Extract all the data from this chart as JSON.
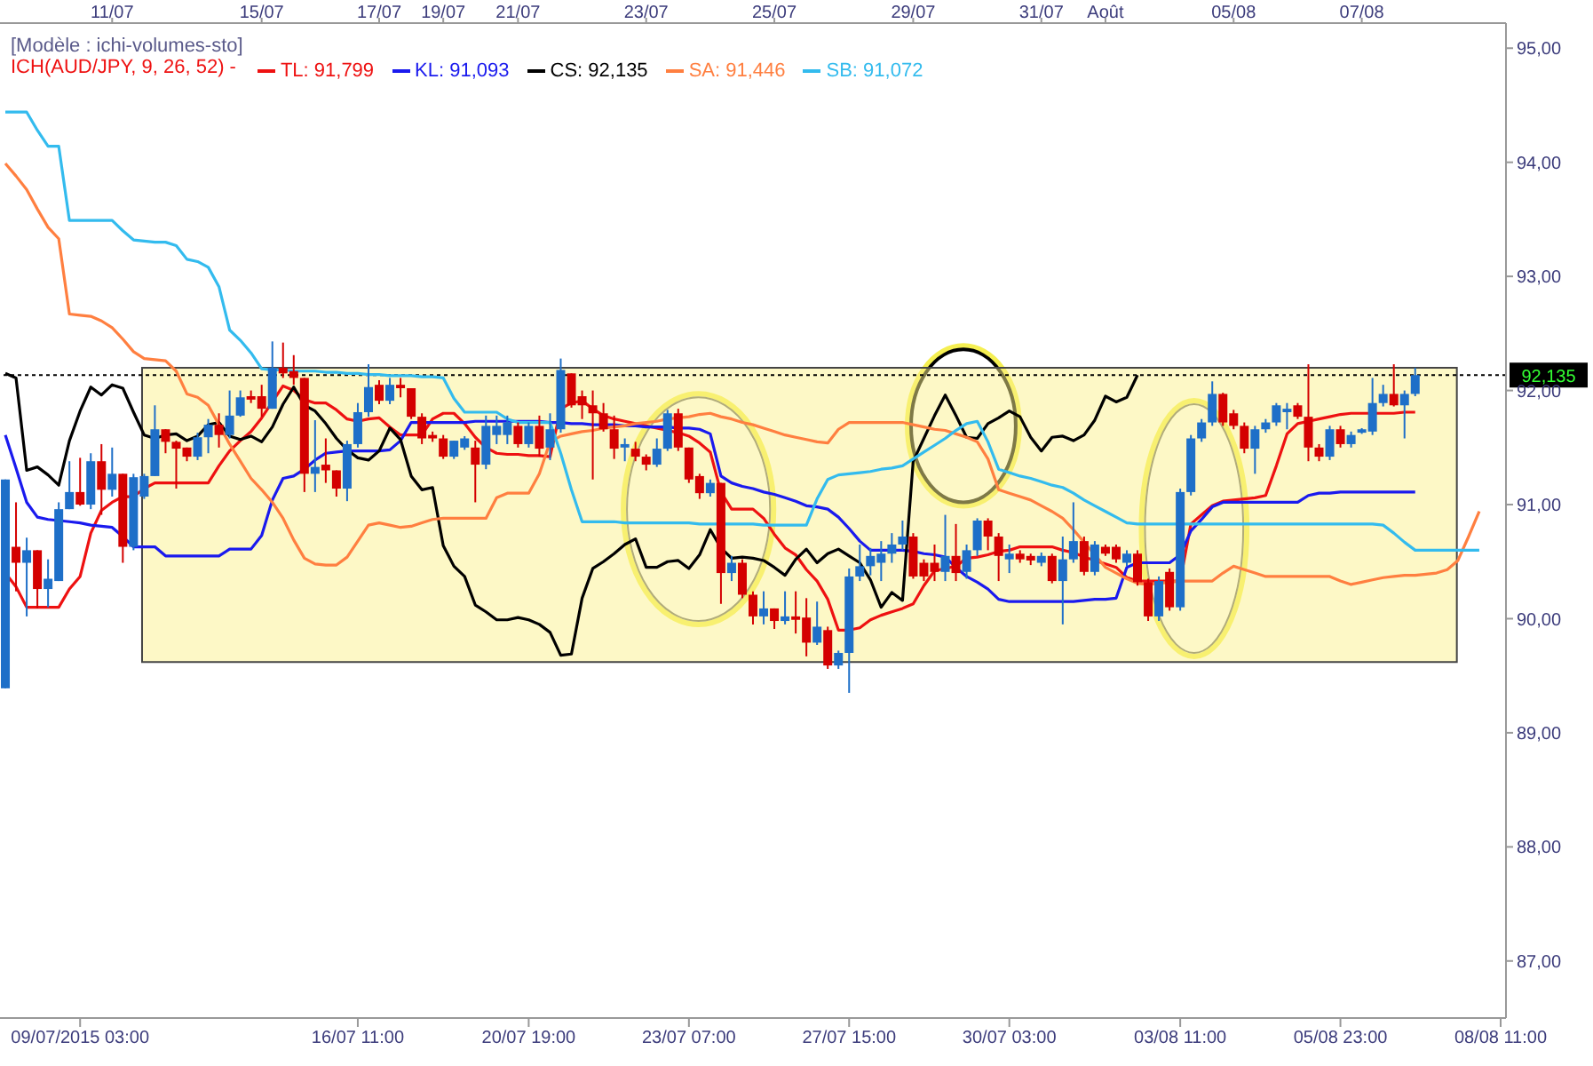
{
  "chart_data": {
    "type": "candlestick",
    "title": "[Modèle : ichi-volumes-sto]",
    "legend_title": "ICH(AUD/JPY, 9, 26, 52) -",
    "legend": "top left",
    "grid": false,
    "marker": "none",
    "line_style": "solid",
    "ylim": [
      86.5,
      95.22
    ],
    "categories": [
      null,
      null,
      null,
      null,
      null,
      null,
      null,
      "09/07/2015 03:00",
      null,
      null,
      null,
      null,
      null,
      null,
      null,
      null,
      null,
      null,
      null,
      null,
      null,
      null,
      null,
      null,
      null,
      null,
      null,
      null,
      null,
      null,
      null,
      null,
      null,
      "16/07 11:00",
      null,
      null,
      null,
      null,
      null,
      null,
      null,
      null,
      null,
      null,
      null,
      null,
      null,
      null,
      null,
      "20/07 19:00",
      null,
      null,
      null,
      null,
      null,
      null,
      null,
      null,
      null,
      null,
      null,
      null,
      null,
      null,
      "23/07 07:00",
      null,
      null,
      null,
      null,
      null,
      null,
      null,
      null,
      null,
      null,
      null,
      null,
      null,
      null,
      "27/07 15:00",
      null,
      null,
      null,
      null,
      null,
      null,
      null,
      null,
      null,
      null,
      null,
      null,
      null,
      null,
      "30/07 03:00",
      null,
      null,
      null,
      null,
      null,
      null,
      null,
      null,
      null,
      null,
      null,
      null,
      null,
      null,
      null,
      "03/08 11:00",
      null,
      null,
      null,
      null,
      null,
      null,
      null,
      null,
      null,
      null,
      null,
      null,
      null,
      null,
      "05/08 23:00",
      null,
      null,
      null,
      null,
      null,
      null,
      null,
      null,
      null,
      null,
      null,
      null,
      null,
      null,
      "08/08 11:00"
    ],
    "annotations": [
      "11/07",
      "15/07",
      "17/07",
      "19/07",
      "21/07",
      "23/07",
      "25/07",
      "29/07",
      "31/07",
      "Août",
      "05/08",
      "07/08"
    ],
    "yticks": [
      {
        "value": 87,
        "label": "87,00"
      },
      {
        "value": 88,
        "label": "88,00"
      },
      {
        "value": 89,
        "label": "89,00"
      },
      {
        "value": 90,
        "label": "90,00"
      },
      {
        "value": 91,
        "label": "91,00"
      },
      {
        "value": 92,
        "label": "92,00"
      },
      {
        "value": 93,
        "label": "93,00"
      },
      {
        "value": 94,
        "label": "94,00"
      },
      {
        "value": 95,
        "label": "95,00"
      }
    ],
    "ref_lines": [
      {
        "axis": "y",
        "value": 92.135,
        "label": "92,135",
        "color": "#000000",
        "line_style": "dotted"
      }
    ],
    "bands": [
      {
        "axis": "y",
        "from": 89.62,
        "to": 92.2,
        "color": "#fdf8c6"
      }
    ],
    "ohlc": [
      [
        89.39,
        91.22,
        89.39,
        91.22
      ],
      [
        90.63,
        91.02,
        90.24,
        90.49
      ],
      [
        90.49,
        90.71,
        90.02,
        90.6
      ],
      [
        90.6,
        90.6,
        90.09,
        90.26
      ],
      [
        90.26,
        90.52,
        90.1,
        90.35
      ],
      [
        90.33,
        91.02,
        90.33,
        90.96
      ],
      [
        90.96,
        91.38,
        90.96,
        91.11
      ],
      [
        91.11,
        91.41,
        90.99,
        91.0
      ],
      [
        91.0,
        91.45,
        90.96,
        91.38
      ],
      [
        91.38,
        91.53,
        90.91,
        91.13
      ],
      [
        91.13,
        91.5,
        91.07,
        91.27
      ],
      [
        91.27,
        91.27,
        90.49,
        90.63
      ],
      [
        90.63,
        91.27,
        90.6,
        91.24
      ],
      [
        91.07,
        91.27,
        91.05,
        91.25
      ],
      [
        91.25,
        91.87,
        91.25,
        91.66
      ],
      [
        91.66,
        91.66,
        91.45,
        91.55
      ],
      [
        91.55,
        91.56,
        91.14,
        91.49
      ],
      [
        91.5,
        91.5,
        91.38,
        91.42
      ],
      [
        91.42,
        91.63,
        91.39,
        91.59
      ],
      [
        91.59,
        91.75,
        91.45,
        91.7
      ],
      [
        91.7,
        91.8,
        91.5,
        91.61
      ],
      [
        91.61,
        92.0,
        91.58,
        91.78
      ],
      [
        91.78,
        92.0,
        91.77,
        91.94
      ],
      [
        91.95,
        92.0,
        91.89,
        91.92
      ],
      [
        91.95,
        92.05,
        91.77,
        91.84
      ],
      [
        91.84,
        92.43,
        91.84,
        92.2
      ],
      [
        92.2,
        92.42,
        92.11,
        92.15
      ],
      [
        92.17,
        92.31,
        92.05,
        92.11
      ],
      [
        92.11,
        92.11,
        91.11,
        91.27
      ],
      [
        91.27,
        91.74,
        91.11,
        91.33
      ],
      [
        91.35,
        91.58,
        91.19,
        91.3
      ],
      [
        91.3,
        91.3,
        91.07,
        91.14
      ],
      [
        91.14,
        91.56,
        91.03,
        91.53
      ],
      [
        91.53,
        91.89,
        91.5,
        91.81
      ],
      [
        91.81,
        92.23,
        91.77,
        92.03
      ],
      [
        92.05,
        92.09,
        91.88,
        91.91
      ],
      [
        91.91,
        92.11,
        91.88,
        92.05
      ],
      [
        92.05,
        92.11,
        91.94,
        92.02
      ],
      [
        92.02,
        92.02,
        91.75,
        91.77
      ],
      [
        91.77,
        91.8,
        91.53,
        91.58
      ],
      [
        91.61,
        91.64,
        91.55,
        91.58
      ],
      [
        91.58,
        91.61,
        91.4,
        91.42
      ],
      [
        91.42,
        91.56,
        91.4,
        91.56
      ],
      [
        91.5,
        91.6,
        91.48,
        91.58
      ],
      [
        91.5,
        91.56,
        91.02,
        91.35
      ],
      [
        91.35,
        91.78,
        91.31,
        91.69
      ],
      [
        91.61,
        91.78,
        91.53,
        91.69
      ],
      [
        91.61,
        91.78,
        91.53,
        91.72
      ],
      [
        91.69,
        91.72,
        91.5,
        91.53
      ],
      [
        91.53,
        91.72,
        91.5,
        91.69
      ],
      [
        91.69,
        91.78,
        91.42,
        91.49
      ],
      [
        91.5,
        91.8,
        91.39,
        91.66
      ],
      [
        91.66,
        92.28,
        91.63,
        92.18
      ],
      [
        92.15,
        92.15,
        91.85,
        91.87
      ],
      [
        91.95,
        92.0,
        91.75,
        91.87
      ],
      [
        91.87,
        92.0,
        91.22,
        91.8
      ],
      [
        91.8,
        91.89,
        91.64,
        91.66
      ],
      [
        91.66,
        91.78,
        91.4,
        91.49
      ],
      [
        91.5,
        91.58,
        91.38,
        91.53
      ],
      [
        91.49,
        91.55,
        91.38,
        91.42
      ],
      [
        91.42,
        91.44,
        91.3,
        91.35
      ],
      [
        91.35,
        91.58,
        91.33,
        91.49
      ],
      [
        91.49,
        91.83,
        91.47,
        91.8
      ],
      [
        91.8,
        91.84,
        91.47,
        91.5
      ],
      [
        91.5,
        91.5,
        91.19,
        91.22
      ],
      [
        91.25,
        91.27,
        91.05,
        91.1
      ],
      [
        91.1,
        91.22,
        91.07,
        91.19
      ],
      [
        91.19,
        91.19,
        90.13,
        90.4
      ],
      [
        90.4,
        90.55,
        90.33,
        90.49
      ],
      [
        90.49,
        90.52,
        90.18,
        90.21
      ],
      [
        90.21,
        90.24,
        89.95,
        90.02
      ],
      [
        90.02,
        90.24,
        89.95,
        90.09
      ],
      [
        90.09,
        90.09,
        89.91,
        89.98
      ],
      [
        89.98,
        90.24,
        89.95,
        90.02
      ],
      [
        90.02,
        90.24,
        89.87,
        89.99
      ],
      [
        90.01,
        90.18,
        89.67,
        89.79
      ],
      [
        89.79,
        90.15,
        89.77,
        89.93
      ],
      [
        89.9,
        89.93,
        89.56,
        89.59
      ],
      [
        89.59,
        89.72,
        89.56,
        89.7
      ],
      [
        89.7,
        90.44,
        89.35,
        90.37
      ],
      [
        90.37,
        90.65,
        90.33,
        90.46
      ],
      [
        90.46,
        90.62,
        90.38,
        90.55
      ],
      [
        90.49,
        90.68,
        90.33,
        90.57
      ],
      [
        90.57,
        90.75,
        90.49,
        90.65
      ],
      [
        90.65,
        90.86,
        90.6,
        90.72
      ],
      [
        90.72,
        90.75,
        90.35,
        90.37
      ],
      [
        90.49,
        90.52,
        90.33,
        90.37
      ],
      [
        90.49,
        90.65,
        90.33,
        90.41
      ],
      [
        90.41,
        90.91,
        90.33,
        90.55
      ],
      [
        90.55,
        90.83,
        90.33,
        90.4
      ],
      [
        90.41,
        90.65,
        90.35,
        90.6
      ],
      [
        90.6,
        90.88,
        90.55,
        90.86
      ],
      [
        90.86,
        90.88,
        90.6,
        90.72
      ],
      [
        90.72,
        90.75,
        90.33,
        90.55
      ],
      [
        90.52,
        90.65,
        90.4,
        90.57
      ],
      [
        90.57,
        90.6,
        90.49,
        90.52
      ],
      [
        90.55,
        90.57,
        90.47,
        90.51
      ],
      [
        90.49,
        90.58,
        90.46,
        90.55
      ],
      [
        90.55,
        90.57,
        90.31,
        90.33
      ],
      [
        90.33,
        90.72,
        89.95,
        90.52
      ],
      [
        90.52,
        91.02,
        90.49,
        90.68
      ],
      [
        90.68,
        90.72,
        90.38,
        90.41
      ],
      [
        90.41,
        90.68,
        90.38,
        90.65
      ],
      [
        90.63,
        90.65,
        90.55,
        90.57
      ],
      [
        90.63,
        90.65,
        90.49,
        90.52
      ],
      [
        90.49,
        90.6,
        90.46,
        90.57
      ],
      [
        90.57,
        90.6,
        90.29,
        90.32
      ],
      [
        90.32,
        90.35,
        89.98,
        90.02
      ],
      [
        90.02,
        90.37,
        89.98,
        90.33
      ],
      [
        90.41,
        90.44,
        90.07,
        90.1
      ],
      [
        90.1,
        91.14,
        90.07,
        91.11
      ],
      [
        91.11,
        91.61,
        91.08,
        91.58
      ],
      [
        91.58,
        91.75,
        91.55,
        91.72
      ],
      [
        91.72,
        92.08,
        91.69,
        91.97
      ],
      [
        91.97,
        91.98,
        91.69,
        91.72
      ],
      [
        91.8,
        91.83,
        91.66,
        91.69
      ],
      [
        91.69,
        91.72,
        91.45,
        91.49
      ],
      [
        91.49,
        91.69,
        91.27,
        91.66
      ],
      [
        91.66,
        91.75,
        91.63,
        91.72
      ],
      [
        91.72,
        91.89,
        91.69,
        91.87
      ],
      [
        91.81,
        91.89,
        91.66,
        91.84
      ],
      [
        91.87,
        91.89,
        91.75,
        91.77
      ],
      [
        91.77,
        92.23,
        91.38,
        91.5
      ],
      [
        91.5,
        91.53,
        91.38,
        91.42
      ],
      [
        91.42,
        91.69,
        91.39,
        91.66
      ],
      [
        91.66,
        91.69,
        91.5,
        91.53
      ],
      [
        91.53,
        91.64,
        91.5,
        91.61
      ],
      [
        91.63,
        91.67,
        91.62,
        91.66
      ],
      [
        91.64,
        92.11,
        91.61,
        91.89
      ],
      [
        91.89,
        92.05,
        91.86,
        91.97
      ],
      [
        91.97,
        92.23,
        91.86,
        91.87
      ],
      [
        91.87,
        92.0,
        91.58,
        91.97
      ],
      [
        91.97,
        92.2,
        91.95,
        92.135
      ],
      null,
      null,
      null,
      null,
      null,
      null,
      null,
      null
    ],
    "colors": [
      "#1e6fc8",
      "#d40000",
      "#1e6fc8",
      "#d40000",
      "#1e6fc8",
      "#1e6fc8",
      "#1e6fc8",
      "#d40000",
      "#1e6fc8",
      "#d40000",
      "#1e6fc8",
      "#d40000",
      "#1e6fc8",
      "#1e6fc8",
      "#1e6fc8",
      "#d40000",
      "#d40000",
      "#d40000",
      "#1e6fc8",
      "#1e6fc8",
      "#d40000",
      "#1e6fc8",
      "#1e6fc8",
      "#d40000",
      "#d40000",
      "#1e6fc8",
      "#d40000",
      "#d40000",
      "#d40000",
      "#1e6fc8",
      "#d40000",
      "#d40000",
      "#1e6fc8",
      "#1e6fc8",
      "#1e6fc8",
      "#d40000",
      "#1e6fc8",
      "#d40000",
      "#d40000",
      "#d40000",
      "#d40000",
      "#d40000",
      "#1e6fc8",
      "#1e6fc8",
      "#d40000",
      "#1e6fc8",
      "#1e6fc8",
      "#1e6fc8",
      "#d40000",
      "#1e6fc8",
      "#d40000",
      "#1e6fc8",
      "#1e6fc8",
      "#d40000",
      "#d40000",
      "#d40000",
      "#d40000",
      "#d40000",
      "#1e6fc8",
      "#d40000",
      "#d40000",
      "#1e6fc8",
      "#1e6fc8",
      "#d40000",
      "#d40000",
      "#d40000",
      "#1e6fc8",
      "#d40000",
      "#1e6fc8",
      "#d40000",
      "#d40000",
      "#1e6fc8",
      "#d40000",
      "#1e6fc8",
      "#d40000",
      "#d40000",
      "#1e6fc8",
      "#d40000",
      "#1e6fc8",
      "#1e6fc8",
      "#1e6fc8",
      "#1e6fc8",
      "#1e6fc8",
      "#1e6fc8",
      "#1e6fc8",
      "#d40000",
      "#d40000",
      "#d40000",
      "#1e6fc8",
      "#d40000",
      "#1e6fc8",
      "#1e6fc8",
      "#d40000",
      "#d40000",
      "#1e6fc8",
      "#d40000",
      "#d40000",
      "#1e6fc8",
      "#d40000",
      "#1e6fc8",
      "#1e6fc8",
      "#d40000",
      "#1e6fc8",
      "#d40000",
      "#d40000",
      "#1e6fc8",
      "#d40000",
      "#d40000",
      "#1e6fc8",
      "#d40000",
      "#1e6fc8",
      "#1e6fc8",
      "#1e6fc8",
      "#1e6fc8",
      "#d40000",
      "#d40000",
      "#d40000",
      "#1e6fc8",
      "#1e6fc8",
      "#1e6fc8",
      "#1e6fc8",
      "#d40000",
      "#d40000",
      "#d40000",
      "#1e6fc8",
      "#d40000",
      "#1e6fc8",
      "#1e6fc8",
      "#1e6fc8",
      "#1e6fc8",
      "#d40000",
      "#1e6fc8",
      "#1e6fc8",
      null,
      null,
      null,
      null,
      null,
      null,
      null,
      null
    ],
    "series": [
      {
        "name": "TL: 91,799",
        "type": "line",
        "color": "#ee1111",
        "values": [
          90.4,
          90.28,
          90.1,
          90.1,
          90.1,
          90.1,
          90.26,
          90.37,
          90.75,
          90.95,
          91.02,
          91.07,
          91.07,
          91.14,
          91.19,
          91.19,
          91.19,
          91.19,
          91.19,
          91.19,
          91.34,
          91.47,
          91.56,
          91.64,
          91.76,
          91.9,
          92.04,
          92.0,
          91.92,
          91.89,
          91.89,
          91.83,
          91.75,
          91.73,
          91.75,
          91.76,
          91.68,
          91.61,
          91.61,
          91.61,
          91.75,
          91.8,
          91.8,
          91.71,
          91.59,
          91.5,
          91.45,
          91.44,
          91.44,
          91.43,
          91.43,
          91.42,
          91.84,
          91.89,
          91.91,
          91.84,
          91.78,
          91.75,
          91.73,
          91.71,
          91.69,
          91.67,
          91.65,
          91.63,
          91.6,
          91.54,
          91.46,
          91.11,
          90.96,
          90.96,
          90.96,
          90.88,
          90.74,
          90.62,
          90.56,
          90.43,
          90.33,
          90.17,
          89.9,
          89.9,
          89.92,
          89.99,
          90.03,
          90.06,
          90.09,
          90.13,
          90.29,
          90.42,
          90.44,
          90.46,
          90.53,
          90.54,
          90.56,
          90.59,
          90.6,
          90.63,
          90.63,
          90.63,
          90.63,
          90.6,
          90.58,
          90.54,
          90.51,
          90.48,
          90.45,
          90.36,
          90.33,
          90.33,
          90.33,
          90.33,
          90.33,
          90.83,
          90.91,
          90.99,
          91.03,
          91.04,
          91.05,
          91.06,
          91.08,
          91.34,
          91.62,
          91.71,
          91.73,
          91.75,
          91.77,
          91.79,
          91.8,
          91.8,
          91.8,
          91.8,
          91.8,
          91.81,
          91.81,
          null,
          null,
          null,
          null,
          null,
          null,
          null,
          null
        ]
      },
      {
        "name": "KL: 91,093",
        "type": "line",
        "color": "#1a1aee",
        "values": [
          91.61,
          91.32,
          91.02,
          90.89,
          90.87,
          90.86,
          90.85,
          90.84,
          90.82,
          90.81,
          90.8,
          90.72,
          90.63,
          90.63,
          90.63,
          90.55,
          90.55,
          90.55,
          90.55,
          90.55,
          90.55,
          90.61,
          90.61,
          90.61,
          90.73,
          91.04,
          91.23,
          91.25,
          91.31,
          91.39,
          91.45,
          91.46,
          91.47,
          91.47,
          91.47,
          91.47,
          91.48,
          91.56,
          91.72,
          91.72,
          91.72,
          91.72,
          91.72,
          91.72,
          91.73,
          91.73,
          91.73,
          91.73,
          91.73,
          91.73,
          91.73,
          91.72,
          91.72,
          91.71,
          91.71,
          91.7,
          91.7,
          91.7,
          91.69,
          91.69,
          91.68,
          91.68,
          91.68,
          91.67,
          91.67,
          91.66,
          91.62,
          91.25,
          91.19,
          91.16,
          91.14,
          91.11,
          91.09,
          91.06,
          91.03,
          90.99,
          90.98,
          90.96,
          90.89,
          90.79,
          90.68,
          90.6,
          90.6,
          90.6,
          90.6,
          90.59,
          90.57,
          90.56,
          90.54,
          90.45,
          90.37,
          90.32,
          90.26,
          90.17,
          90.15,
          90.15,
          90.15,
          90.15,
          90.15,
          90.15,
          90.15,
          90.16,
          90.17,
          90.17,
          90.18,
          90.45,
          90.49,
          90.49,
          90.49,
          90.49,
          90.56,
          90.77,
          90.87,
          90.98,
          91.02,
          91.02,
          91.02,
          91.02,
          91.02,
          91.02,
          91.02,
          91.02,
          91.08,
          91.1,
          91.1,
          91.11,
          91.11,
          91.11,
          91.11,
          91.11,
          91.11,
          91.11,
          91.11,
          null,
          null,
          null,
          null,
          null,
          null,
          null,
          null
        ]
      },
      {
        "name": "CS: 92,135",
        "type": "line",
        "color": "#000000",
        "values": [
          92.15,
          92.11,
          91.3,
          91.33,
          91.26,
          91.17,
          91.56,
          91.82,
          92.03,
          91.96,
          92.05,
          92.02,
          91.81,
          91.61,
          91.58,
          91.61,
          91.62,
          91.56,
          91.6,
          91.7,
          91.72,
          91.6,
          91.57,
          91.6,
          91.55,
          91.68,
          91.88,
          92.03,
          91.87,
          91.82,
          91.71,
          91.58,
          91.48,
          91.41,
          91.39,
          91.47,
          91.67,
          91.57,
          91.25,
          91.13,
          91.15,
          90.64,
          90.46,
          90.37,
          90.12,
          90.06,
          89.99,
          89.99,
          90.01,
          89.99,
          89.95,
          89.88,
          89.68,
          89.69,
          90.18,
          90.44,
          90.5,
          90.57,
          90.65,
          90.7,
          90.45,
          90.45,
          90.5,
          90.51,
          90.44,
          90.56,
          90.78,
          90.62,
          90.53,
          90.54,
          90.53,
          90.51,
          90.45,
          90.38,
          90.52,
          90.61,
          90.49,
          90.57,
          90.61,
          90.55,
          90.49,
          90.34,
          90.1,
          90.23,
          90.16,
          91.38,
          91.58,
          91.78,
          91.96,
          91.78,
          91.59,
          91.58,
          91.71,
          91.76,
          91.82,
          91.77,
          91.59,
          91.47,
          91.59,
          91.6,
          91.56,
          91.61,
          91.74,
          91.95,
          91.9,
          91.94,
          92.135,
          null,
          null,
          null,
          null,
          null,
          null,
          null,
          null,
          null,
          null,
          null,
          null,
          null,
          null,
          null,
          null,
          null,
          null,
          null,
          null,
          null,
          null,
          null,
          null,
          null,
          null,
          null,
          null,
          null,
          null,
          null,
          null,
          null,
          null
        ]
      },
      {
        "name": "SA: 91,446",
        "type": "line",
        "color": "#ff7f40",
        "values": [
          93.99,
          93.88,
          93.76,
          93.59,
          93.43,
          93.33,
          92.67,
          92.66,
          92.65,
          92.61,
          92.55,
          92.45,
          92.34,
          92.28,
          92.27,
          92.26,
          92.17,
          91.97,
          91.94,
          91.87,
          91.7,
          91.53,
          91.38,
          91.23,
          91.13,
          91.02,
          90.88,
          90.69,
          90.53,
          90.48,
          90.47,
          90.47,
          90.54,
          90.68,
          90.82,
          90.84,
          90.82,
          90.8,
          90.81,
          90.84,
          90.87,
          90.88,
          90.88,
          90.88,
          90.88,
          90.88,
          91.06,
          91.1,
          91.1,
          91.1,
          91.27,
          91.55,
          91.6,
          91.62,
          91.64,
          91.65,
          91.67,
          91.68,
          91.69,
          91.71,
          91.72,
          91.73,
          91.75,
          91.76,
          91.77,
          91.79,
          91.8,
          91.77,
          91.75,
          91.72,
          91.7,
          91.67,
          91.64,
          91.61,
          91.59,
          91.57,
          91.55,
          91.54,
          91.66,
          91.72,
          91.72,
          91.72,
          91.72,
          91.72,
          91.72,
          91.7,
          91.68,
          91.66,
          91.65,
          91.62,
          91.59,
          91.55,
          91.4,
          91.13,
          91.1,
          91.07,
          91.04,
          90.99,
          90.94,
          90.88,
          90.78,
          90.67,
          90.56,
          90.45,
          90.4,
          90.35,
          90.31,
          90.3,
          90.31,
          90.32,
          90.33,
          90.33,
          90.33,
          90.33,
          90.4,
          90.46,
          90.43,
          90.4,
          90.37,
          90.37,
          90.37,
          90.37,
          90.37,
          90.37,
          90.37,
          90.33,
          90.3,
          90.32,
          90.34,
          90.36,
          90.37,
          90.38,
          90.38,
          90.39,
          90.4,
          90.43,
          90.51,
          90.72,
          90.94,
          null,
          null
        ]
      },
      {
        "name": "SB: 91,072",
        "type": "line",
        "color": "#33bbee",
        "values": [
          94.44,
          94.44,
          94.44,
          94.28,
          94.14,
          94.14,
          93.49,
          93.49,
          93.49,
          93.49,
          93.49,
          93.4,
          93.32,
          93.31,
          93.3,
          93.3,
          93.27,
          93.15,
          93.13,
          93.08,
          92.91,
          92.53,
          92.44,
          92.33,
          92.19,
          92.18,
          92.18,
          92.17,
          92.17,
          92.17,
          92.16,
          92.16,
          92.15,
          92.15,
          92.14,
          92.14,
          92.13,
          92.13,
          92.13,
          92.12,
          92.12,
          92.11,
          91.93,
          91.81,
          91.81,
          91.81,
          91.81,
          91.75,
          91.72,
          91.72,
          91.72,
          91.72,
          91.45,
          91.13,
          90.85,
          90.85,
          90.85,
          90.85,
          90.84,
          90.84,
          90.84,
          90.84,
          90.84,
          90.84,
          90.84,
          90.83,
          90.83,
          90.83,
          90.83,
          90.83,
          90.83,
          90.82,
          90.82,
          90.82,
          90.82,
          90.82,
          91.05,
          91.22,
          91.26,
          91.27,
          91.28,
          91.29,
          91.31,
          91.32,
          91.34,
          91.4,
          91.46,
          91.52,
          91.58,
          91.65,
          91.71,
          91.73,
          91.55,
          91.31,
          91.28,
          91.25,
          91.23,
          91.2,
          91.17,
          91.15,
          91.1,
          91.04,
          90.99,
          90.94,
          90.89,
          90.84,
          90.83,
          90.83,
          90.83,
          90.83,
          90.83,
          90.83,
          90.83,
          90.83,
          90.83,
          90.83,
          90.83,
          90.83,
          90.83,
          90.83,
          90.83,
          90.83,
          90.83,
          90.83,
          90.83,
          90.83,
          90.83,
          90.83,
          90.83,
          90.82,
          90.75,
          90.67,
          90.6,
          90.6,
          90.6,
          90.6,
          90.6,
          90.6,
          90.6,
          null,
          null
        ]
      }
    ]
  }
}
